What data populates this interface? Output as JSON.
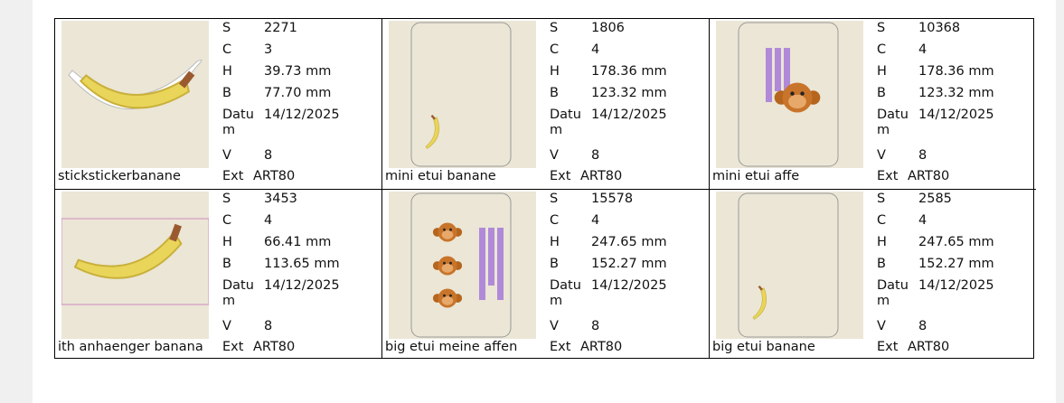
{
  "labels": {
    "s": "S",
    "c": "C",
    "h": "H",
    "b": "B",
    "datum": "Datum",
    "v": "V",
    "ext": "Ext"
  },
  "items": [
    {
      "name": "stickstickerbanane",
      "s": 2271,
      "c": 3,
      "h": "39.73 mm",
      "b": "77.70 mm",
      "datum": "14/12/2025",
      "v": 8,
      "ext": "ART80"
    },
    {
      "name": "mini etui banane",
      "s": 1806,
      "c": 4,
      "h": "178.36 mm",
      "b": "123.32 mm",
      "datum": "14/12/2025",
      "v": 8,
      "ext": "ART80"
    },
    {
      "name": "mini etui affe",
      "s": 10368,
      "c": 4,
      "h": "178.36 mm",
      "b": "123.32 mm",
      "datum": "14/12/2025",
      "v": 8,
      "ext": "ART80"
    },
    {
      "name": "ith anhaenger banana",
      "s": 3453,
      "c": 4,
      "h": "66.41 mm",
      "b": "113.65 mm",
      "datum": "14/12/2025",
      "v": 8,
      "ext": "ART80"
    },
    {
      "name": "big etui meine affen",
      "s": 15578,
      "c": 4,
      "h": "247.65 mm",
      "b": "152.27 mm",
      "datum": "14/12/2025",
      "v": 8,
      "ext": "ART80"
    },
    {
      "name": "big etui banane",
      "s": 2585,
      "c": 4,
      "h": "247.65 mm",
      "b": "152.27 mm",
      "datum": "14/12/2025",
      "v": 8,
      "ext": "ART80"
    }
  ]
}
